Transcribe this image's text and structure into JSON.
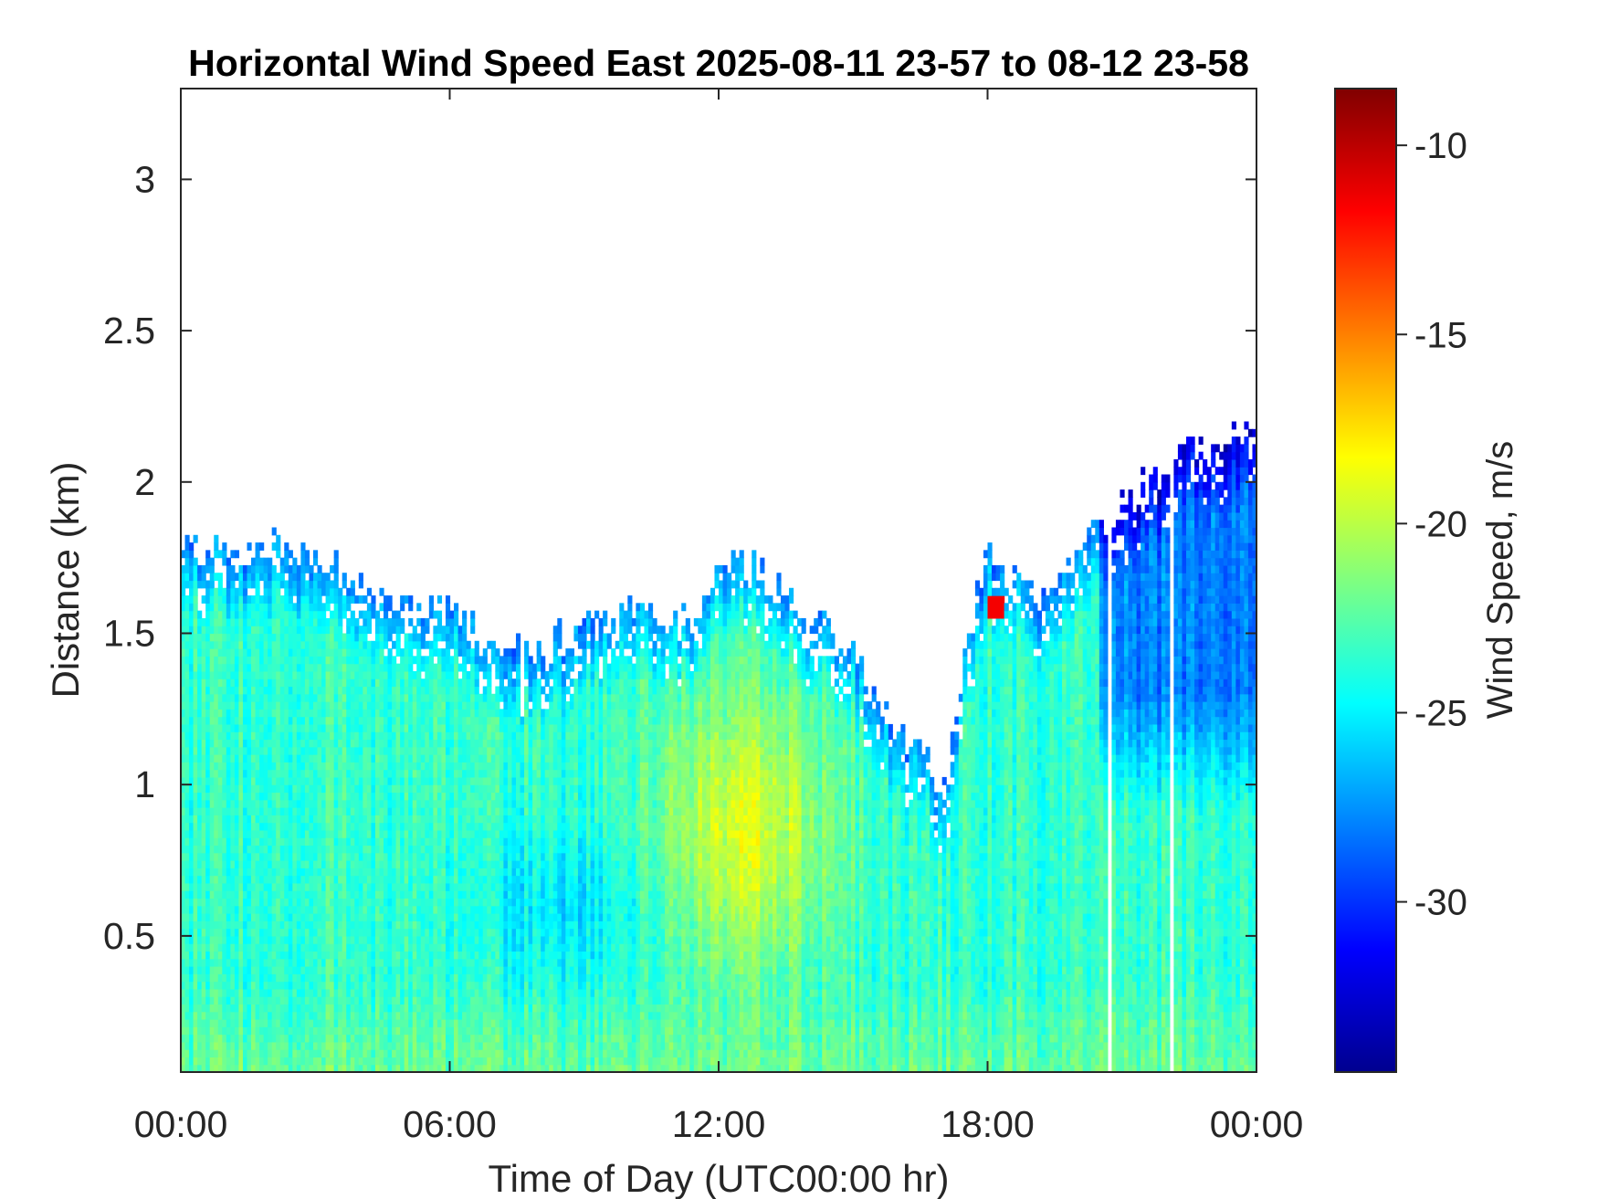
{
  "chart_data": {
    "type": "heatmap",
    "title": "Horizontal Wind Speed East 2025-08-11 23-57 to 08-12 23-58",
    "xlabel": "Time of Day (UTC00:00 hr)",
    "ylabel": "Distance (km)",
    "x_ticks": [
      "00:00",
      "06:00",
      "12:00",
      "18:00",
      "00:00"
    ],
    "x_range_hours": [
      0,
      24
    ],
    "y_ticks": [
      "0.5",
      "1",
      "1.5",
      "2",
      "2.5",
      "3"
    ],
    "y_tick_values": [
      0.5,
      1,
      1.5,
      2,
      2.5,
      3
    ],
    "y_range_km": [
      0.05,
      3.3
    ],
    "grid": false,
    "colorbar": {
      "label": "Wind Speed, m/s",
      "ticks": [
        "-10",
        "-15",
        "-20",
        "-25",
        "-30"
      ],
      "tick_values": [
        -10,
        -15,
        -20,
        -25,
        -30
      ],
      "range": [
        -34.5,
        -8.5
      ],
      "colormap": "jet"
    },
    "data_top_km": {
      "hours": [
        0,
        1,
        2,
        3,
        4,
        5,
        6,
        7,
        8,
        9,
        10,
        11,
        11.7,
        12,
        13,
        14,
        15,
        15.5,
        16,
        16.5,
        17,
        17.5,
        18,
        19,
        20,
        21,
        22,
        22.5,
        23,
        23.5,
        24
      ],
      "top": [
        1.8,
        1.78,
        1.8,
        1.77,
        1.65,
        1.6,
        1.57,
        1.48,
        1.45,
        1.52,
        1.58,
        1.56,
        1.58,
        1.77,
        1.7,
        1.55,
        1.45,
        1.3,
        1.15,
        1.15,
        0.95,
        1.4,
        1.8,
        1.6,
        1.75,
        1.92,
        2.05,
        2.15,
        2.1,
        2.2,
        2.15
      ]
    },
    "data_gaps_hours": [
      20.75,
      22.15
    ]
  }
}
